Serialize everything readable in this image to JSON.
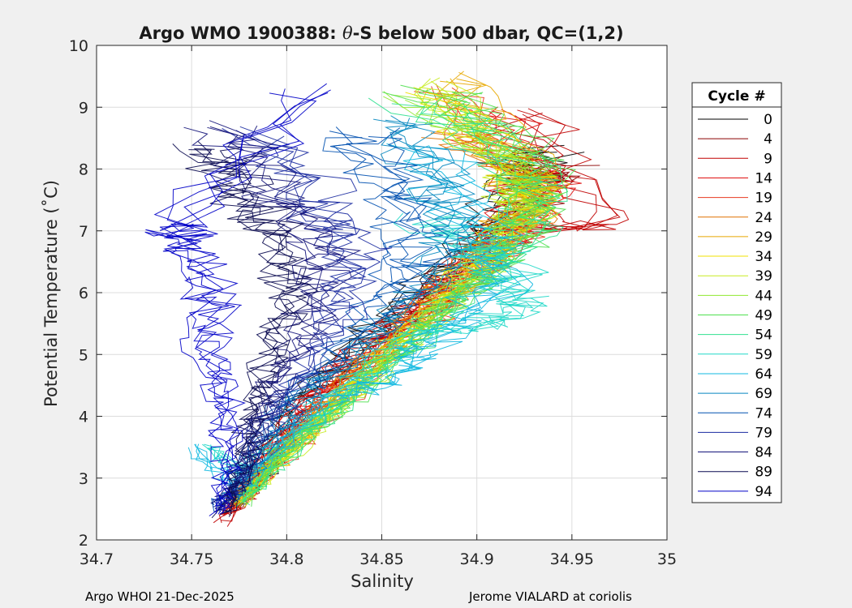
{
  "chart_data": {
    "type": "line",
    "title": "Argo WMO 1900388: θ-S below 500 dbar,  QC=(1,2)",
    "title_parts": {
      "prefix": "Argo WMO 1900388: ",
      "theta": "θ",
      "suffix": "-S below 500 dbar,  QC=(1,2)"
    },
    "xlabel": "Salinity",
    "ylabel": "Potential Temperature (˚C)",
    "xlim": [
      34.7,
      35.0
    ],
    "ylim": [
      2,
      10
    ],
    "xticks": [
      "34.7",
      "34.75",
      "34.8",
      "34.85",
      "34.9",
      "34.95",
      "35"
    ],
    "yticks": [
      "2",
      "3",
      "4",
      "5",
      "6",
      "7",
      "8",
      "9",
      "10"
    ],
    "grid": true,
    "legend": {
      "title": "Cycle #",
      "placement": "right-outside",
      "entries": [
        {
          "label": "0",
          "color": "#000000"
        },
        {
          "label": "4",
          "color": "#8b0000"
        },
        {
          "label": "9",
          "color": "#c00000"
        },
        {
          "label": "14",
          "color": "#e01010"
        },
        {
          "label": "19",
          "color": "#e83820"
        },
        {
          "label": "24",
          "color": "#e07000"
        },
        {
          "label": "29",
          "color": "#e8a800"
        },
        {
          "label": "34",
          "color": "#f0e000"
        },
        {
          "label": "39",
          "color": "#c8ec20"
        },
        {
          "label": "44",
          "color": "#90e830"
        },
        {
          "label": "49",
          "color": "#50e050"
        },
        {
          "label": "54",
          "color": "#30e090"
        },
        {
          "label": "59",
          "color": "#20d8c8"
        },
        {
          "label": "64",
          "color": "#10b8e0"
        },
        {
          "label": "69",
          "color": "#0888c0"
        },
        {
          "label": "74",
          "color": "#0050b0"
        },
        {
          "label": "79",
          "color": "#1a2aa0"
        },
        {
          "label": "84",
          "color": "#14147a"
        },
        {
          "label": "89",
          "color": "#0a0a50"
        },
        {
          "label": "94",
          "color": "#0000c8"
        }
      ]
    },
    "series_envelope": [
      {
        "name": "0",
        "points": [
          [
            34.77,
            2.5
          ],
          [
            34.785,
            3.0
          ],
          [
            34.8,
            4.0
          ],
          [
            34.83,
            5.0
          ],
          [
            34.87,
            6.0
          ],
          [
            34.905,
            7.0
          ],
          [
            34.92,
            7.9
          ],
          [
            34.93,
            8.3
          ]
        ]
      },
      {
        "name": "4",
        "points": [
          [
            34.77,
            2.4
          ],
          [
            34.79,
            3.2
          ],
          [
            34.81,
            4.1
          ],
          [
            34.845,
            5.1
          ],
          [
            34.88,
            6.0
          ],
          [
            34.91,
            7.0
          ],
          [
            34.935,
            7.8
          ],
          [
            34.94,
            8.0
          ]
        ]
      },
      {
        "name": "9",
        "points": [
          [
            34.765,
            2.3
          ],
          [
            34.785,
            3.0
          ],
          [
            34.81,
            4.2
          ],
          [
            34.845,
            5.2
          ],
          [
            34.885,
            6.1
          ],
          [
            34.92,
            7.0
          ],
          [
            34.96,
            7.1
          ],
          [
            34.93,
            8.9
          ]
        ]
      },
      {
        "name": "14",
        "points": [
          [
            34.77,
            2.5
          ],
          [
            34.79,
            3.3
          ],
          [
            34.815,
            4.3
          ],
          [
            34.855,
            5.2
          ],
          [
            34.89,
            6.2
          ],
          [
            34.92,
            7.2
          ],
          [
            34.93,
            7.8
          ],
          [
            34.91,
            9.0
          ]
        ]
      },
      {
        "name": "19",
        "points": [
          [
            34.77,
            2.5
          ],
          [
            34.79,
            3.1
          ],
          [
            34.82,
            4.1
          ],
          [
            34.855,
            5.0
          ],
          [
            34.89,
            6.0
          ],
          [
            34.925,
            6.9
          ],
          [
            34.94,
            7.6
          ],
          [
            34.88,
            9.3
          ]
        ]
      },
      {
        "name": "24",
        "points": [
          [
            34.772,
            2.6
          ],
          [
            34.795,
            3.3
          ],
          [
            34.825,
            4.4
          ],
          [
            34.86,
            5.4
          ],
          [
            34.895,
            6.3
          ],
          [
            34.92,
            7.2
          ],
          [
            34.925,
            7.9
          ],
          [
            34.89,
            8.6
          ]
        ]
      },
      {
        "name": "29",
        "points": [
          [
            34.772,
            2.6
          ],
          [
            34.8,
            3.4
          ],
          [
            34.83,
            4.4
          ],
          [
            34.865,
            5.4
          ],
          [
            34.9,
            6.4
          ],
          [
            34.925,
            7.4
          ],
          [
            34.93,
            7.9
          ],
          [
            34.885,
            9.5
          ]
        ]
      },
      {
        "name": "34",
        "points": [
          [
            34.775,
            2.6
          ],
          [
            34.8,
            3.5
          ],
          [
            34.835,
            4.5
          ],
          [
            34.87,
            5.5
          ],
          [
            34.905,
            6.5
          ],
          [
            34.93,
            7.5
          ],
          [
            34.92,
            8.0
          ],
          [
            34.875,
            9.3
          ]
        ]
      },
      {
        "name": "39",
        "points": [
          [
            34.775,
            2.6
          ],
          [
            34.805,
            3.5
          ],
          [
            34.84,
            4.6
          ],
          [
            34.875,
            5.6
          ],
          [
            34.905,
            6.6
          ],
          [
            34.925,
            7.3
          ],
          [
            34.92,
            7.8
          ],
          [
            34.88,
            9.4
          ]
        ]
      },
      {
        "name": "44",
        "points": [
          [
            34.775,
            2.6
          ],
          [
            34.805,
            3.6
          ],
          [
            34.845,
            4.6
          ],
          [
            34.88,
            5.6
          ],
          [
            34.91,
            6.6
          ],
          [
            34.93,
            7.4
          ],
          [
            34.92,
            8.2
          ],
          [
            34.87,
            9.2
          ]
        ]
      },
      {
        "name": "49",
        "points": [
          [
            34.775,
            2.6
          ],
          [
            34.8,
            3.5
          ],
          [
            34.84,
            4.5
          ],
          [
            34.88,
            5.6
          ],
          [
            34.91,
            6.5
          ],
          [
            34.93,
            7.2
          ],
          [
            34.93,
            8.2
          ],
          [
            34.875,
            9.3
          ]
        ]
      },
      {
        "name": "54",
        "points": [
          [
            34.775,
            2.6
          ],
          [
            34.8,
            3.4
          ],
          [
            34.835,
            4.4
          ],
          [
            34.87,
            5.4
          ],
          [
            34.9,
            6.2
          ],
          [
            34.925,
            7.1
          ],
          [
            34.925,
            8.0
          ],
          [
            34.87,
            9.1
          ]
        ]
      },
      {
        "name": "59",
        "points": [
          [
            34.76,
            3.5
          ],
          [
            34.78,
            3.1
          ],
          [
            34.83,
            4.4
          ],
          [
            34.865,
            5.3
          ],
          [
            34.91,
            5.5
          ],
          [
            34.925,
            5.9
          ],
          [
            34.91,
            6.6
          ],
          [
            34.88,
            7.2
          ]
        ]
      },
      {
        "name": "64",
        "points": [
          [
            34.75,
            3.5
          ],
          [
            34.775,
            2.9
          ],
          [
            34.82,
            4.2
          ],
          [
            34.86,
            4.7
          ],
          [
            34.88,
            5.3
          ],
          [
            34.91,
            6.1
          ],
          [
            34.9,
            7.0
          ],
          [
            34.87,
            8.4
          ]
        ]
      },
      {
        "name": "69",
        "points": [
          [
            34.77,
            2.6
          ],
          [
            34.785,
            3.3
          ],
          [
            34.81,
            4.3
          ],
          [
            34.84,
            5.1
          ],
          [
            34.87,
            6.0
          ],
          [
            34.89,
            6.8
          ],
          [
            34.88,
            7.8
          ],
          [
            34.86,
            8.8
          ]
        ]
      },
      {
        "name": "74",
        "points": [
          [
            34.765,
            2.5
          ],
          [
            34.78,
            3.2
          ],
          [
            34.8,
            4.2
          ],
          [
            34.83,
            5.0
          ],
          [
            34.855,
            5.9
          ],
          [
            34.87,
            6.7
          ],
          [
            34.86,
            7.6
          ],
          [
            34.84,
            8.6
          ]
        ]
      },
      {
        "name": "79",
        "points": [
          [
            34.765,
            2.5
          ],
          [
            34.78,
            3.0
          ],
          [
            34.79,
            4.0
          ],
          [
            34.815,
            4.8
          ],
          [
            34.83,
            5.7
          ],
          [
            34.84,
            6.6
          ],
          [
            34.82,
            7.4
          ],
          [
            34.79,
            8.6
          ]
        ]
      },
      {
        "name": "84",
        "points": [
          [
            34.765,
            2.5
          ],
          [
            34.775,
            3.1
          ],
          [
            34.785,
            4.0
          ],
          [
            34.8,
            4.9
          ],
          [
            34.815,
            5.8
          ],
          [
            34.82,
            6.7
          ],
          [
            34.79,
            7.6
          ],
          [
            34.77,
            8.7
          ]
        ]
      },
      {
        "name": "89",
        "points": [
          [
            34.765,
            2.4
          ],
          [
            34.775,
            3.0
          ],
          [
            34.78,
            4.0
          ],
          [
            34.79,
            5.0
          ],
          [
            34.8,
            5.9
          ],
          [
            34.795,
            6.8
          ],
          [
            34.77,
            7.6
          ],
          [
            34.76,
            8.4
          ]
        ]
      },
      {
        "name": "94",
        "points": [
          [
            34.765,
            2.4
          ],
          [
            34.77,
            3.2
          ],
          [
            34.77,
            4.2
          ],
          [
            34.76,
            5.0
          ],
          [
            34.765,
            5.9
          ],
          [
            34.75,
            6.7
          ],
          [
            34.745,
            7.1
          ],
          [
            34.82,
            9.3
          ]
        ]
      }
    ]
  },
  "footer": {
    "left": "Argo WHOI 21-Dec-2025",
    "right": "Jerome VIALARD at coriolis"
  }
}
